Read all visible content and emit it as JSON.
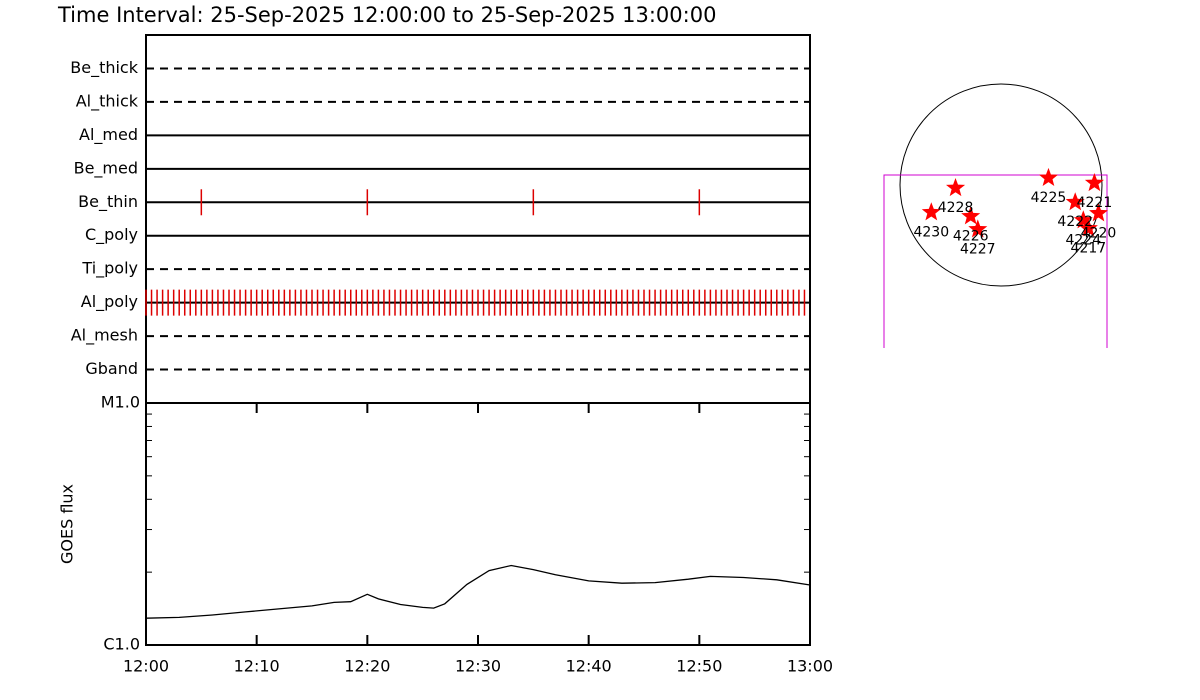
{
  "title": "Time Interval: 25-Sep-2025 12:00:00 to 25-Sep-2025 13:00:00",
  "chart_data": [
    {
      "type": "timeline",
      "categories": [
        "Be_thick",
        "Al_thick",
        "Al_med",
        "Be_med",
        "Be_thin",
        "C_poly",
        "Ti_poly",
        "Al_poly",
        "Al_mesh",
        "Gband"
      ],
      "line_styles": [
        "dashed",
        "dashed",
        "solid",
        "solid",
        "solid",
        "solid",
        "dashed",
        "solid",
        "dashed",
        "dashed"
      ],
      "event_times": [
        [],
        [],
        [],
        [],
        [
          5,
          20,
          35,
          50
        ],
        [],
        [],
        [
          0,
          0.5,
          1,
          1.5,
          2,
          2.5,
          3,
          3.5,
          4,
          4.5,
          5,
          5.5,
          6,
          6.5,
          7,
          7.5,
          8,
          8.5,
          9,
          9.5,
          10,
          10.5,
          11,
          11.5,
          12,
          12.5,
          13,
          13.5,
          14,
          14.5,
          15,
          15.5,
          16,
          16.5,
          17,
          17.5,
          18,
          18.5,
          19,
          19.5,
          20,
          20.5,
          21,
          21.5,
          22,
          22.5,
          23,
          23.5,
          24,
          24.5,
          25,
          25.5,
          26,
          26.5,
          27,
          27.5,
          28,
          28.5,
          29,
          29.5,
          30,
          30.5,
          31,
          31.5,
          32,
          32.5,
          33,
          33.5,
          34,
          34.5,
          35,
          35.5,
          36,
          36.5,
          37,
          37.5,
          38,
          38.5,
          39,
          39.5,
          40,
          40.5,
          41,
          41.5,
          42,
          42.5,
          43,
          43.5,
          44,
          44.5,
          45,
          45.5,
          46,
          46.5,
          47,
          47.5,
          48,
          48.5,
          49,
          49.5,
          50,
          50.5,
          51,
          51.5,
          52,
          52.5,
          53,
          53.5,
          54,
          54.5,
          55,
          55.5,
          56,
          56.5,
          57,
          57.5,
          58,
          58.5,
          59,
          59.5
        ],
        [],
        []
      ],
      "event_color": "#dd0000",
      "xlim": [
        0,
        60
      ]
    },
    {
      "type": "line",
      "ylabel": "GOES flux",
      "x": [
        0,
        3,
        6,
        9,
        12,
        15,
        17,
        18.5,
        20,
        21,
        23,
        25,
        26,
        27,
        29,
        31,
        33,
        35,
        37,
        40,
        43,
        46,
        49,
        51,
        54,
        57,
        60
      ],
      "values": [
        1.29e-06,
        1.3e-06,
        1.33e-06,
        1.37e-06,
        1.41e-06,
        1.45e-06,
        1.5e-06,
        1.51e-06,
        1.62e-06,
        1.55e-06,
        1.47e-06,
        1.43e-06,
        1.42e-06,
        1.48e-06,
        1.78e-06,
        2.03e-06,
        2.13e-06,
        2.05e-06,
        1.95e-06,
        1.84e-06,
        1.8e-06,
        1.81e-06,
        1.87e-06,
        1.92e-06,
        1.9e-06,
        1.86e-06,
        1.77e-06
      ],
      "color": "#000000",
      "log_scale": true,
      "ylim": [
        1e-06,
        1e-05
      ],
      "yticks": [
        {
          "value": 1e-06,
          "label": "C1.0"
        },
        {
          "value": 1e-05,
          "label": "M1.0"
        }
      ],
      "yminor": [
        2e-06,
        3e-06,
        4e-06,
        5e-06,
        6e-06,
        7e-06,
        8e-06,
        9e-06
      ],
      "xlim": [
        0,
        60
      ],
      "xticks": [
        {
          "value": 0,
          "label": "12:00"
        },
        {
          "value": 10,
          "label": "12:10"
        },
        {
          "value": 20,
          "label": "12:20"
        },
        {
          "value": 30,
          "label": "12:30"
        },
        {
          "value": 40,
          "label": "12:40"
        },
        {
          "value": 50,
          "label": "12:50"
        },
        {
          "value": 60,
          "label": "13:00"
        }
      ]
    },
    {
      "type": "scatter",
      "labels": [
        "4228",
        "4230",
        "4226",
        "4227",
        "4225",
        "4221",
        "4222",
        "4220",
        "4224",
        "4217"
      ],
      "x": [
        -450,
        -690,
        -300,
        -230,
        470,
        925,
        735,
        965,
        815,
        865
      ],
      "values": [
        -30,
        -270,
        -310,
        -440,
        70,
        20,
        -170,
        -280,
        -350,
        -430
      ],
      "color": "#ff0000",
      "xlim": [
        -1000,
        1000
      ],
      "ylim": [
        -1000,
        1000
      ]
    }
  ]
}
